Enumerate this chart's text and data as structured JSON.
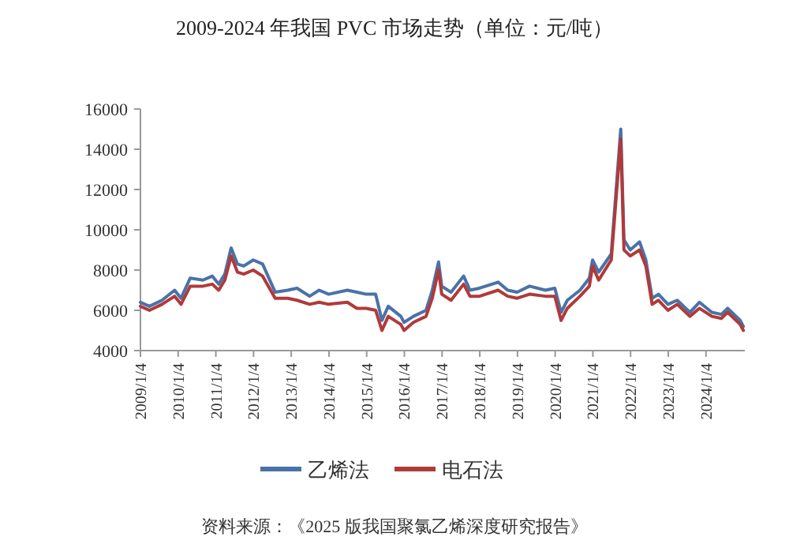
{
  "chart_data": {
    "type": "line",
    "title": "2009-2024 年我国 PVC 市场走势（单位：元/吨）",
    "annotations": [
      "资料来源：《2025 版我国聚氯乙烯深度研究报告》"
    ],
    "xlim": [
      "2009-01-04",
      "2025-01-15"
    ],
    "xticks": [
      {
        "value": "2009-01-04",
        "label": "2009/1/4"
      },
      {
        "value": "2010-01-04",
        "label": "2010/1/4"
      },
      {
        "value": "2011-01-04",
        "label": "2011/1/4"
      },
      {
        "value": "2012-01-04",
        "label": "2012/1/4"
      },
      {
        "value": "2013-01-04",
        "label": "2013/1/4"
      },
      {
        "value": "2014-01-04",
        "label": "2014/1/4"
      },
      {
        "value": "2015-01-04",
        "label": "2015/1/4"
      },
      {
        "value": "2016-01-04",
        "label": "2016/1/4"
      },
      {
        "value": "2017-01-04",
        "label": "2017/1/4"
      },
      {
        "value": "2018-01-04",
        "label": "2018/1/4"
      },
      {
        "value": "2019-01-04",
        "label": "2019/1/4"
      },
      {
        "value": "2020-01-04",
        "label": "2020/1/4"
      },
      {
        "value": "2021-01-04",
        "label": "2021/1/4"
      },
      {
        "value": "2022-01-04",
        "label": "2022/1/4"
      },
      {
        "value": "2023-01-04",
        "label": "2023/1/4"
      },
      {
        "value": "2024-01-04",
        "label": "2024/1/4"
      }
    ],
    "ylim": [
      4000,
      16000
    ],
    "yticks": [
      4000,
      6000,
      8000,
      10000,
      12000,
      14000,
      16000
    ],
    "grid": false,
    "legend": "bottom",
    "marker": "none",
    "line_style": "solid",
    "x": [
      "2009-01-04",
      "2009-04",
      "2009-08",
      "2009-12",
      "2010-02",
      "2010-05",
      "2010-09",
      "2010-12",
      "2011-02",
      "2011-04",
      "2011-06",
      "2011-08",
      "2011-10",
      "2012-01",
      "2012-04",
      "2012-08",
      "2012-12",
      "2013-03",
      "2013-07",
      "2013-10",
      "2014-01",
      "2014-07",
      "2014-10",
      "2015-01",
      "2015-04",
      "2015-06",
      "2015-08",
      "2015-12",
      "2016-01",
      "2016-04",
      "2016-08",
      "2016-10",
      "2016-12",
      "2017-01",
      "2017-04",
      "2017-08",
      "2017-10",
      "2018-01",
      "2018-07",
      "2018-10",
      "2019-01",
      "2019-05",
      "2019-10",
      "2020-01",
      "2020-03",
      "2020-05",
      "2020-09",
      "2020-12",
      "2021-01",
      "2021-03",
      "2021-07",
      "2021-10",
      "2021-11",
      "2022-01",
      "2022-04",
      "2022-06",
      "2022-08",
      "2022-10",
      "2023-01",
      "2023-04",
      "2023-08",
      "2023-11",
      "2024-03",
      "2024-06",
      "2024-08",
      "2024-12",
      "2025-01"
    ],
    "series": [
      {
        "name": "乙烯法",
        "color": "#4a72a8",
        "values": [
          6400,
          6200,
          6500,
          7000,
          6600,
          7600,
          7500,
          7700,
          7300,
          7800,
          9100,
          8300,
          8200,
          8500,
          8300,
          6900,
          7000,
          7100,
          6700,
          7000,
          6800,
          7000,
          6900,
          6800,
          6800,
          5500,
          6200,
          5700,
          5400,
          5700,
          6000,
          7000,
          8400,
          7200,
          6900,
          7700,
          7000,
          7100,
          7400,
          7000,
          6900,
          7200,
          7000,
          7100,
          5900,
          6500,
          7000,
          7600,
          8500,
          7900,
          8800,
          15000,
          9500,
          9000,
          9400,
          8500,
          6600,
          6800,
          6300,
          6500,
          5900,
          6400,
          5900,
          5800,
          6100,
          5500,
          5200
        ]
      },
      {
        "name": "电石法",
        "color": "#b03a3a",
        "values": [
          6200,
          6000,
          6300,
          6700,
          6300,
          7200,
          7200,
          7300,
          7000,
          7500,
          8700,
          7900,
          7800,
          8000,
          7700,
          6600,
          6600,
          6500,
          6300,
          6400,
          6300,
          6400,
          6100,
          6100,
          6000,
          5000,
          5700,
          5300,
          5000,
          5400,
          5700,
          6600,
          8000,
          6800,
          6500,
          7300,
          6700,
          6700,
          7000,
          6700,
          6600,
          6800,
          6700,
          6700,
          5500,
          6100,
          6700,
          7200,
          8200,
          7500,
          8500,
          14500,
          9000,
          8700,
          9000,
          8200,
          6300,
          6500,
          6000,
          6300,
          5700,
          6100,
          5700,
          5600,
          5900,
          5300,
          5000
        ]
      }
    ]
  }
}
